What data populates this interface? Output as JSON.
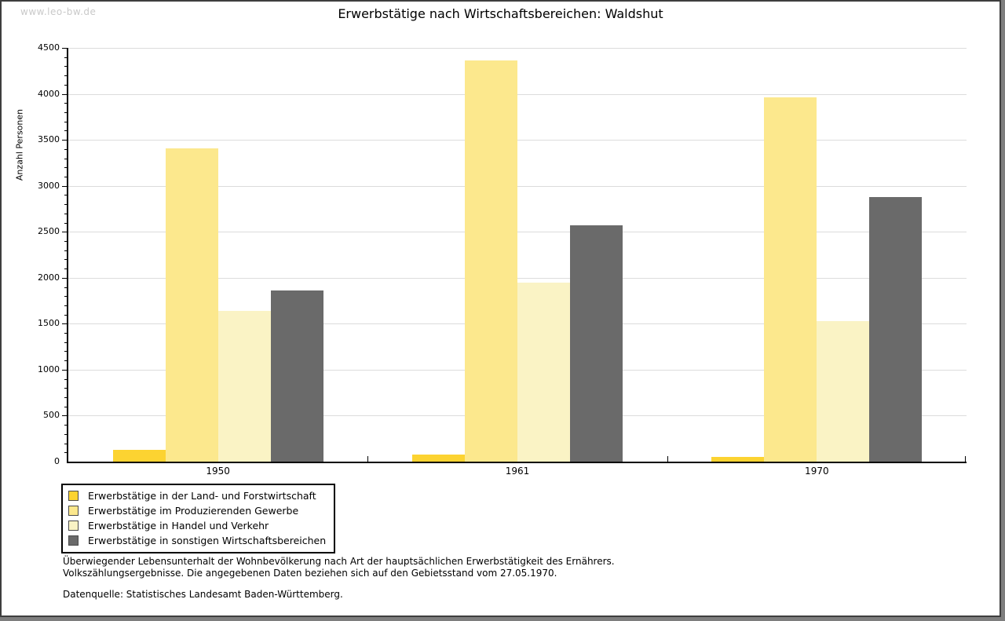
{
  "watermark": "www.leo-bw.de",
  "title": "Erwerbstätige nach Wirtschaftsbereichen: Waldshut",
  "footer": {
    "line1": "Überwiegender Lebensunterhalt der Wohnbevölkerung nach Art der hauptsächlichen Erwerbstätigkeit des Ernährers.",
    "line2": "Volkszählungsergebnisse. Die angegebenen Daten beziehen sich auf den Gebietsstand vom 27.05.1970.",
    "source": "Datenquelle: Statistisches Landesamt Baden-Württemberg."
  },
  "chart_data": {
    "type": "bar",
    "title": "Erwerbstätige nach Wirtschaftsbereichen: Waldshut",
    "xlabel": "",
    "ylabel": "Anzahl Personen",
    "categories": [
      "1950",
      "1961",
      "1970"
    ],
    "series": [
      {
        "name": "Erwerbstätige in der Land- und Forstwirtschaft",
        "color": "#FCD331",
        "values": [
          130,
          75,
          50
        ]
      },
      {
        "name": "Erwerbstätige im Produzierenden Gewerbe",
        "color": "#FCE88D",
        "values": [
          3410,
          4360,
          3960
        ]
      },
      {
        "name": "Erwerbstätige in Handel und Verkehr",
        "color": "#FAF3C5",
        "values": [
          1640,
          1950,
          1530
        ]
      },
      {
        "name": "Erwerbstätige in sonstigen Wirtschaftsbereichen",
        "color": "#6A6A6A",
        "values": [
          1860,
          2570,
          2880
        ]
      }
    ],
    "ylim": [
      0,
      4500
    ],
    "ytick_step": 500,
    "yminor_step": 100,
    "grid": true,
    "legend_position": "bottom-left",
    "axis_color": "#000000",
    "gridline_color": "#dcdcdc"
  }
}
